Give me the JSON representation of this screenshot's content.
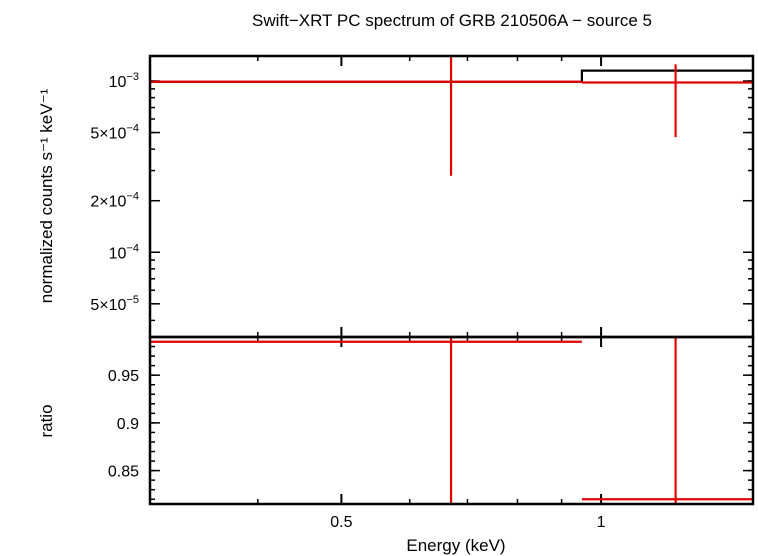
{
  "chart_data": {
    "type": "step",
    "title": "Swift−XRT PC spectrum of GRB 210506A − source 5",
    "xlabel": "Energy (keV)",
    "xscale": "log",
    "xlim": [
      0.3,
      1.5
    ],
    "xticks": [
      {
        "value": 0.5,
        "label": "0.5"
      },
      {
        "value": 1,
        "label": "1"
      }
    ],
    "colors": {
      "model": "#000000",
      "data": "#e00000"
    },
    "panels": [
      {
        "name": "spectrum",
        "ylabel": "normalized counts s⁻¹ keV⁻¹",
        "yscale": "log",
        "ylim": [
          3.2e-05,
          0.0014
        ],
        "yticks": [
          {
            "value": 0.001,
            "base": "10",
            "sup": "−3"
          },
          {
            "value": 0.0005,
            "base": "5×10",
            "sup": "−4"
          },
          {
            "value": 0.0002,
            "base": "2×10",
            "sup": "−4"
          },
          {
            "value": 0.0001,
            "base": "10",
            "sup": "−4"
          },
          {
            "value": 5e-05,
            "base": "5×10",
            "sup": "−5"
          }
        ],
        "series": [
          {
            "type": "step",
            "color": "#000000",
            "x_edges": [
              0.3,
              0.95,
              1.5
            ],
            "y": [
              0.00099,
              0.00115
            ]
          },
          {
            "type": "errorbar",
            "color": "#e00000",
            "points": [
              {
                "x": 0.67,
                "xlo": 0.3,
                "xhi": 0.95,
                "y": 0.00099,
                "ylo": 0.00028,
                "yhi": 0.0014
              },
              {
                "x": 1.22,
                "xlo": 0.95,
                "xhi": 1.5,
                "y": 0.00098,
                "ylo": 0.00047,
                "yhi": 0.00125
              }
            ]
          }
        ]
      },
      {
        "name": "ratio",
        "ylabel": "ratio",
        "yscale": "linear",
        "ylim": [
          0.815,
          0.99
        ],
        "yticks": [
          {
            "value": 0.85,
            "label": "0.85"
          },
          {
            "value": 0.9,
            "label": "0.9"
          },
          {
            "value": 0.95,
            "label": "0.95"
          }
        ],
        "series": [
          {
            "type": "errorbar",
            "color": "#e00000",
            "points": [
              {
                "x": 0.67,
                "xlo": 0.3,
                "xhi": 0.95,
                "y": 0.985,
                "ylo": 0.815,
                "yhi": 0.99
              },
              {
                "x": 1.22,
                "xlo": 0.95,
                "xhi": 1.5,
                "y": 0.82,
                "ylo": 0.815,
                "yhi": 0.99
              }
            ]
          }
        ]
      }
    ]
  }
}
